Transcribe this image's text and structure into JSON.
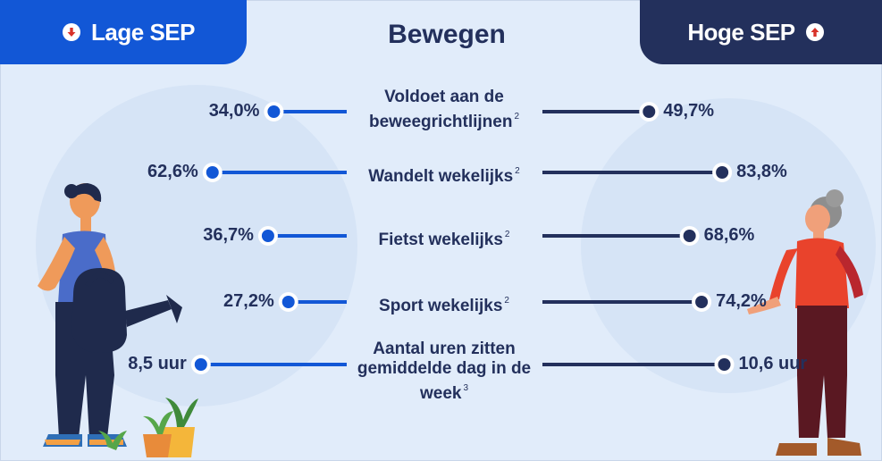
{
  "header": {
    "title": "Bewegen",
    "left_group": "Lage SEP",
    "right_group": "Hoge SEP"
  },
  "colors": {
    "low": "#1257d6",
    "high": "#23305c",
    "background": "#e1ecfa"
  },
  "icons": {
    "left": "arrow-down-icon",
    "right": "arrow-up-icon"
  },
  "chart_data": {
    "type": "bar",
    "categories": [
      "Voldoet aan de beweegrichtlijnen",
      "Wandelt wekelijks",
      "Fietst wekelijks",
      "Sport wekelijks",
      "Aantal uren zitten gemiddelde dag in de week"
    ],
    "footnotes": [
      "2",
      "2",
      "2",
      "2",
      "3"
    ],
    "series": [
      {
        "name": "Lage SEP",
        "values": [
          34.0,
          62.6,
          36.7,
          27.2,
          8.5
        ],
        "labels": [
          "34,0%",
          "62,6%",
          "36,7%",
          "27,2%",
          "8,5 uur"
        ]
      },
      {
        "name": "Hoge SEP",
        "values": [
          49.7,
          83.8,
          68.6,
          74.2,
          10.6
        ],
        "labels": [
          "49,7%",
          "83,8%",
          "68,6%",
          "74,2%",
          "10,6 uur"
        ]
      }
    ],
    "units": [
      "%",
      "%",
      "%",
      "%",
      "uur"
    ],
    "ranges": [
      [
        0,
        100
      ],
      [
        0,
        100
      ],
      [
        0,
        100
      ],
      [
        0,
        100
      ],
      [
        0,
        12.5
      ]
    ]
  }
}
